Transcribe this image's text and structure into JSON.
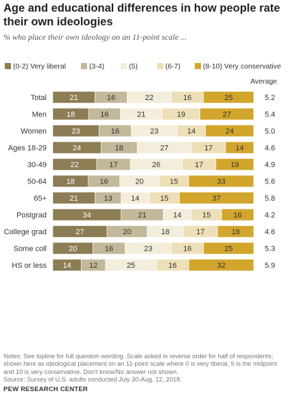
{
  "title": "Age and educational differences in how people rate their own ideologies",
  "subtitle": "% who place their own ideology on an 11-point scale ...",
  "average_header": "Average",
  "notes": "Notes: See topline for full question wording. Scale asked in reverse order for half of respondents; shown here as ideological placement on an 11-point scale where 0 is very liberal, 5 is the midpoint and 10 is very conservative. Don't know/No answer not shown.",
  "source": "Source: Survey of U.S. adults conducted July 30-Aug. 12, 2018.",
  "source_org": "PEW RESEARCH CENTER",
  "chart_data": {
    "type": "bar",
    "orientation": "horizontal",
    "stacked": true,
    "legend_placement": "top",
    "series": [
      {
        "name": "(0-2) Very liberal",
        "color": "#8c7d55"
      },
      {
        "name": "(3-4)",
        "color": "#c2b89a"
      },
      {
        "name": "(5)",
        "color": "#f3eddb"
      },
      {
        "name": "(6-7)",
        "color": "#ede0b8"
      },
      {
        "name": "(8-10) Very conservative",
        "color": "#d2a62c"
      }
    ],
    "groups": [
      {
        "rows": [
          {
            "label": "Total",
            "values": [
              21,
              16,
              22,
              16,
              25
            ],
            "average": "5.2"
          }
        ]
      },
      {
        "rows": [
          {
            "label": "Men",
            "values": [
              18,
              16,
              21,
              19,
              27
            ],
            "average": "5.4"
          },
          {
            "label": "Women",
            "values": [
              23,
              16,
              23,
              14,
              24
            ],
            "average": "5.0"
          }
        ]
      },
      {
        "rows": [
          {
            "label": "Ages 18-29",
            "values": [
              24,
              18,
              27,
              17,
              14
            ],
            "average": "4.6"
          },
          {
            "label": "30-49",
            "values": [
              22,
              17,
              26,
              17,
              19
            ],
            "average": "4.9"
          },
          {
            "label": "50-64",
            "values": [
              18,
              16,
              20,
              15,
              33
            ],
            "average": "5.6"
          },
          {
            "label": "65+",
            "values": [
              21,
              13,
              14,
              15,
              37
            ],
            "average": "5.8"
          }
        ]
      },
      {
        "rows": [
          {
            "label": "Postgrad",
            "values": [
              34,
              21,
              14,
              15,
              16
            ],
            "average": "4.2"
          },
          {
            "label": "College grad",
            "values": [
              27,
              20,
              18,
              17,
              18
            ],
            "average": "4.6"
          },
          {
            "label": "Some coll",
            "values": [
              20,
              16,
              23,
              16,
              25
            ],
            "average": "5.3"
          },
          {
            "label": "HS or less",
            "values": [
              14,
              12,
              25,
              16,
              32
            ],
            "average": "5.9"
          }
        ]
      }
    ]
  }
}
